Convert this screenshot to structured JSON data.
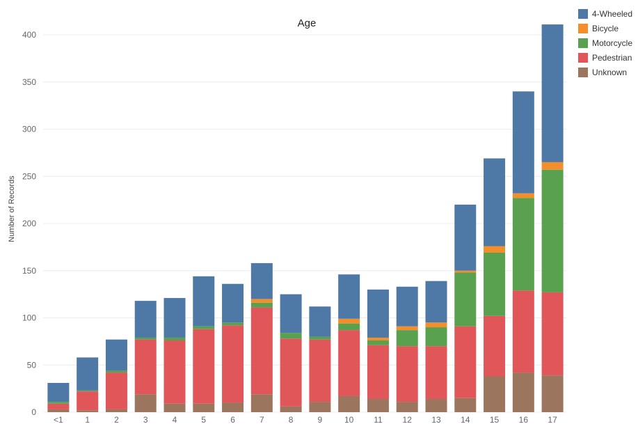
{
  "chart_data": {
    "type": "bar",
    "stacked": true,
    "title": "Age",
    "xlabel": "",
    "ylabel": "Number of Records",
    "ylim": [
      0,
      420
    ],
    "yticks": [
      0,
      50,
      100,
      150,
      200,
      250,
      300,
      350,
      400
    ],
    "grid": true,
    "legend_position": "top-right",
    "categories": [
      "<1",
      "1",
      "2",
      "3",
      "4",
      "5",
      "6",
      "7",
      "8",
      "9",
      "10",
      "11",
      "12",
      "13",
      "14",
      "15",
      "16",
      "17"
    ],
    "series": [
      {
        "name": "Unknown",
        "color": "#9C755F",
        "values": [
          3,
          2,
          3,
          19,
          9,
          9,
          10,
          19,
          6,
          11,
          17,
          14,
          11,
          14,
          15,
          38,
          42,
          39
        ]
      },
      {
        "name": "Pedestrian",
        "color": "#E15759",
        "values": [
          6,
          20,
          39,
          58,
          67,
          79,
          82,
          92,
          72,
          66,
          70,
          57,
          59,
          56,
          76,
          64,
          87,
          88
        ]
      },
      {
        "name": "Motorcycle",
        "color": "#59A14F",
        "values": [
          2,
          1,
          2,
          2,
          3,
          3,
          3,
          5,
          6,
          3,
          7,
          5,
          17,
          20,
          57,
          67,
          98,
          130
        ]
      },
      {
        "name": "Bicycle",
        "color": "#F28E2B",
        "values": [
          0,
          0,
          0,
          0,
          0,
          0,
          0,
          4,
          0,
          0,
          5,
          3,
          4,
          5,
          2,
          7,
          5,
          8
        ]
      },
      {
        "name": "4-Wheeled",
        "color": "#4E79A7",
        "values": [
          20,
          35,
          33,
          39,
          42,
          53,
          41,
          38,
          41,
          32,
          47,
          51,
          42,
          44,
          70,
          93,
          108,
          146
        ]
      }
    ]
  }
}
